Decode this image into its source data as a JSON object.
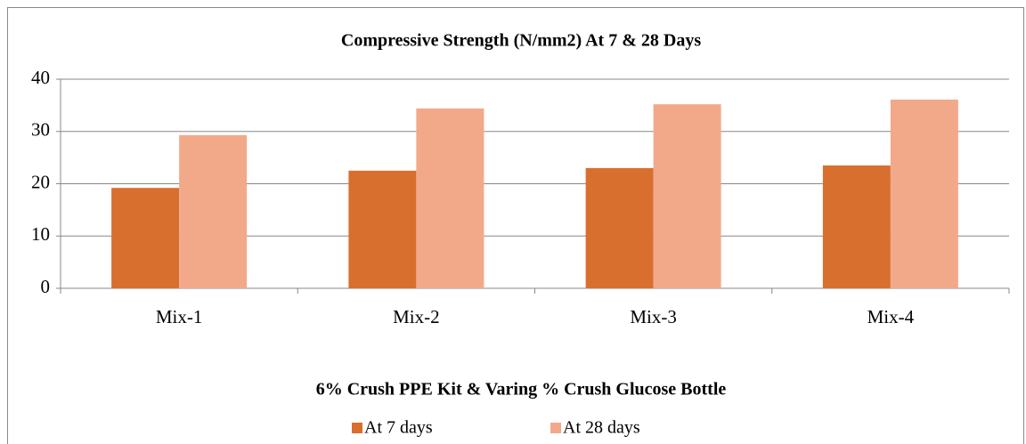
{
  "chart_data": {
    "type": "bar",
    "title": "Compressive Strength (N/mm2) At 7 & 28 Days",
    "x_label": "6% Crush PPE Kit & Varing % Crush Glucose Bottle",
    "categories": [
      "Mix-1",
      "Mix-2",
      "Mix-3",
      "Mix-4"
    ],
    "series": [
      {
        "name": "At 7 days",
        "color": "#d86f2e",
        "values": [
          19.2,
          22.5,
          23.0,
          23.5
        ]
      },
      {
        "name": "At 28 days",
        "color": "#f2a98a",
        "values": [
          29.3,
          34.4,
          35.2,
          36.1
        ]
      }
    ],
    "ylim": [
      0,
      40
    ],
    "yticks": [
      0,
      10,
      20,
      30,
      40
    ],
    "grid": true,
    "legend": "bottom"
  }
}
